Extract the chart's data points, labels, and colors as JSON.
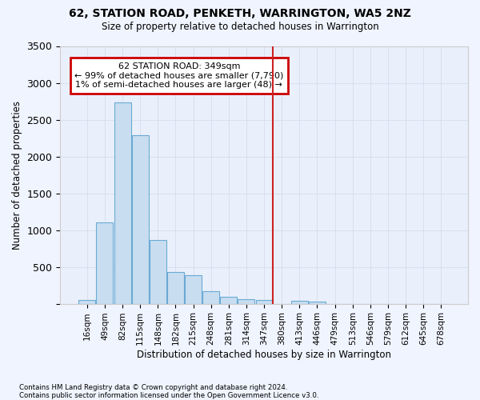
{
  "title": "62, STATION ROAD, PENKETH, WARRINGTON, WA5 2NZ",
  "subtitle": "Size of property relative to detached houses in Warrington",
  "xlabel": "Distribution of detached houses by size in Warrington",
  "ylabel": "Number of detached properties",
  "footnote1": "Contains HM Land Registry data © Crown copyright and database right 2024.",
  "footnote2": "Contains public sector information licensed under the Open Government Licence v3.0.",
  "bar_color": "#c8ddf0",
  "bar_edge_color": "#6aaad4",
  "vline_color": "#cc2222",
  "vline_x_idx": 10,
  "annotation_title": "62 STATION ROAD: 349sqm",
  "annotation_line1": "← 99% of detached houses are smaller (7,790)",
  "annotation_line2": "1% of semi-detached houses are larger (48) →",
  "annotation_box_color": "#cc0000",
  "categories": [
    "16sqm",
    "49sqm",
    "82sqm",
    "115sqm",
    "148sqm",
    "182sqm",
    "215sqm",
    "248sqm",
    "281sqm",
    "314sqm",
    "347sqm",
    "380sqm",
    "413sqm",
    "446sqm",
    "479sqm",
    "513sqm",
    "546sqm",
    "579sqm",
    "612sqm",
    "645sqm",
    "678sqm"
  ],
  "values": [
    55,
    1100,
    2730,
    2290,
    870,
    430,
    390,
    165,
    95,
    60,
    55,
    0,
    35,
    25,
    0,
    0,
    0,
    0,
    0,
    0,
    0
  ],
  "ylim": [
    0,
    3500
  ],
  "yticks": [
    0,
    500,
    1000,
    1500,
    2000,
    2500,
    3000,
    3500
  ],
  "bg_color": "#f0f4ff",
  "plot_bg_color": "#eaf0fb",
  "grid_color": "#d8e0f0",
  "figsize": [
    6.0,
    5.0
  ],
  "dpi": 100
}
